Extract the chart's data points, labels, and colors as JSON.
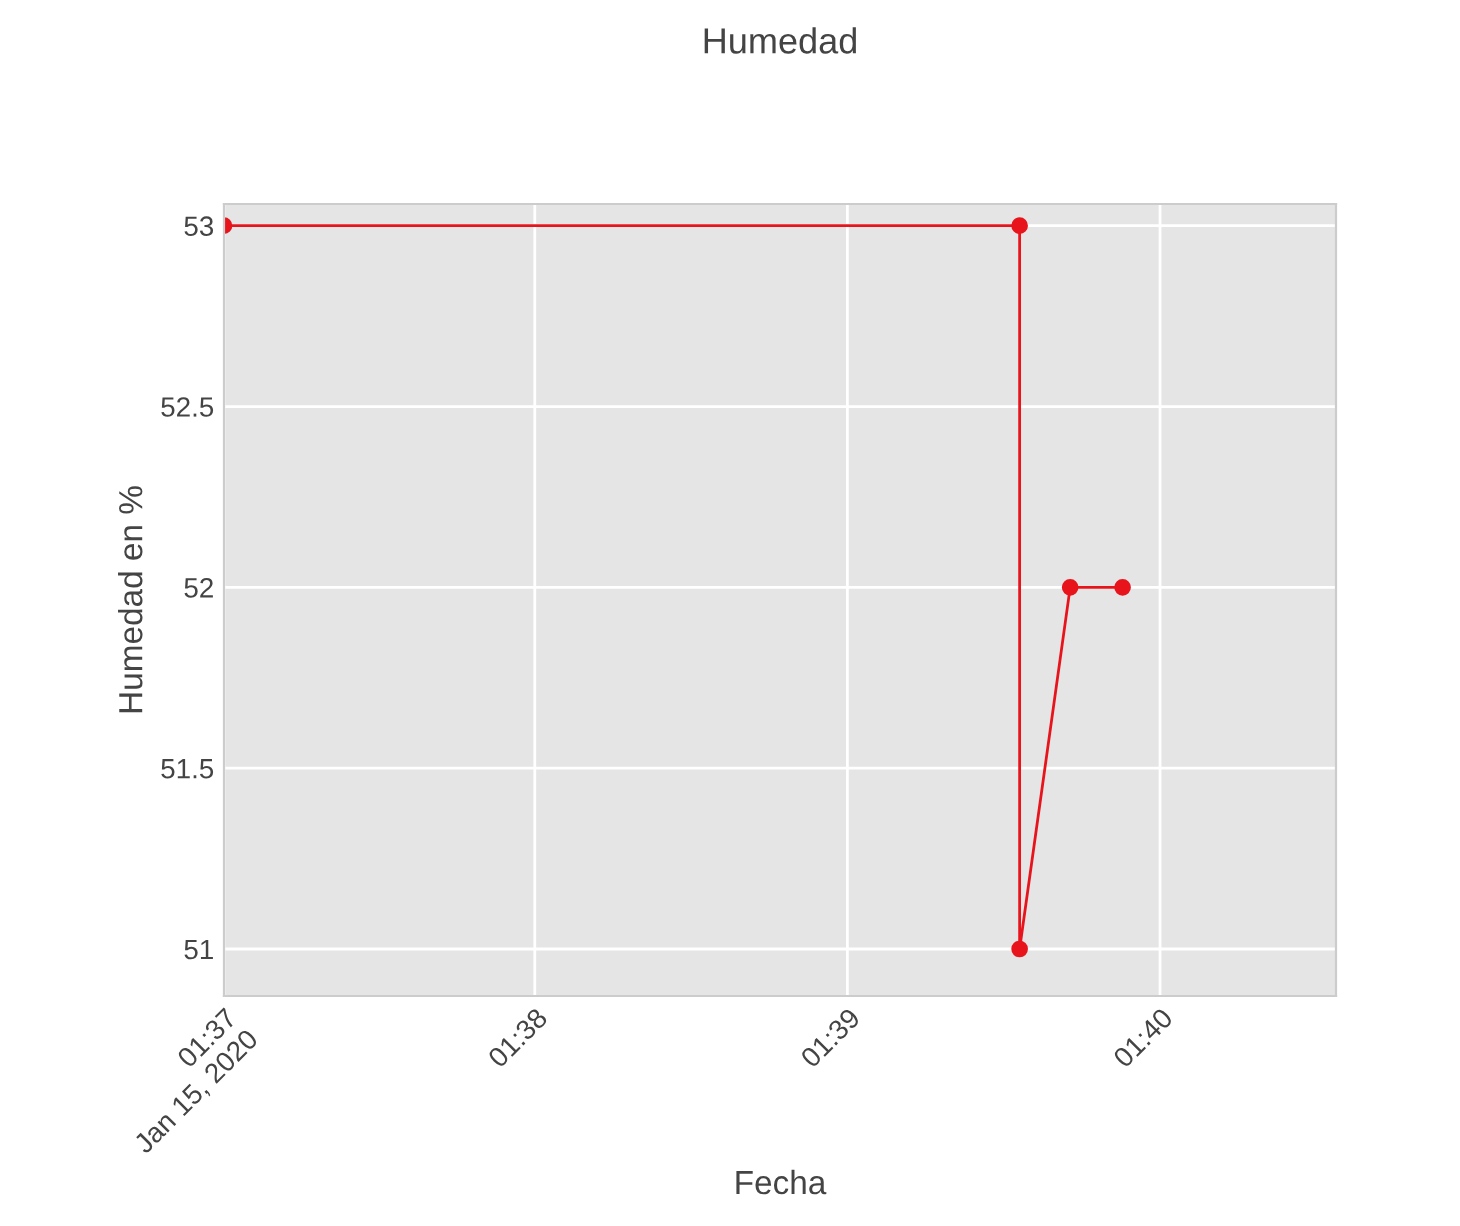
{
  "chart_data": {
    "type": "line",
    "title": "Humedad",
    "xlabel": "Fecha",
    "ylabel": "Humedad en %",
    "x": [
      1.6167,
      1.6592,
      1.6592,
      1.6619,
      1.6647
    ],
    "series": [
      {
        "color": "#e8141c",
        "values": [
          53,
          53,
          51,
          52,
          52
        ]
      }
    ],
    "xlim": [
      1.6167,
      1.6761
    ],
    "xticks": [
      {
        "value": 1.6167,
        "label": "01:37\nJan 15, 2020"
      },
      {
        "value": 1.6333,
        "label": "01:38"
      },
      {
        "value": 1.65,
        "label": "01:39"
      },
      {
        "value": 1.6667,
        "label": "01:40"
      }
    ],
    "ylim": [
      50.87,
      53.06
    ],
    "yticks": [
      51,
      51.5,
      52,
      52.5,
      53
    ],
    "grid": true,
    "legend": false,
    "marker": "circle",
    "line_style": "solid"
  }
}
